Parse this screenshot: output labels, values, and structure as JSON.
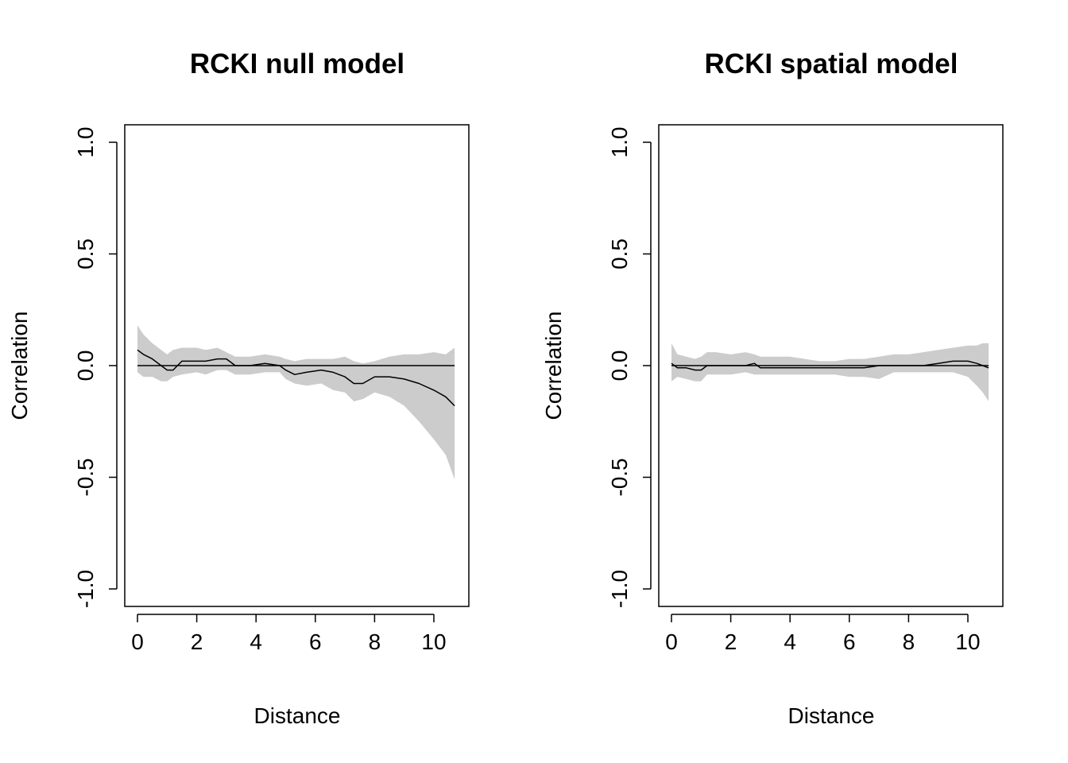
{
  "chart_data": [
    {
      "type": "line",
      "title": "RCKI null model",
      "xlabel": "Distance",
      "ylabel": "Correlation",
      "xlim": [
        0,
        10.7
      ],
      "ylim": [
        -1.0,
        1.0
      ],
      "x_ticks": [
        0,
        2,
        4,
        6,
        8,
        10
      ],
      "y_ticks": [
        -1.0,
        -0.5,
        0.0,
        0.5,
        1.0
      ],
      "x_tick_labels": [
        "0",
        "2",
        "4",
        "6",
        "8",
        "10"
      ],
      "y_tick_labels": [
        "-1.0",
        "-0.5",
        "0.0",
        "0.5",
        "1.0"
      ],
      "reference_line": 0,
      "band_color": "#cccccc",
      "line_color": "#000000",
      "series": [
        {
          "x": [
            0,
            0.2,
            0.5,
            0.8,
            1.0,
            1.2,
            1.5,
            2.0,
            2.3,
            2.7,
            3.0,
            3.3,
            3.8,
            4.3,
            4.8,
            5.0,
            5.3,
            5.7,
            6.2,
            6.6,
            7.0,
            7.3,
            7.6,
            8.0,
            8.5,
            9.0,
            9.5,
            10.0,
            10.4,
            10.7
          ],
          "y": [
            0.07,
            0.05,
            0.03,
            0.0,
            -0.02,
            -0.02,
            0.02,
            0.02,
            0.02,
            0.03,
            0.03,
            0.0,
            0.0,
            0.01,
            0.0,
            -0.02,
            -0.04,
            -0.03,
            -0.02,
            -0.03,
            -0.05,
            -0.08,
            -0.08,
            -0.05,
            -0.05,
            -0.06,
            -0.08,
            -0.11,
            -0.14,
            -0.18
          ],
          "lower": [
            -0.03,
            -0.05,
            -0.05,
            -0.07,
            -0.07,
            -0.05,
            -0.04,
            -0.03,
            -0.04,
            -0.02,
            -0.02,
            -0.04,
            -0.04,
            -0.03,
            -0.03,
            -0.06,
            -0.08,
            -0.09,
            -0.08,
            -0.11,
            -0.12,
            -0.16,
            -0.15,
            -0.12,
            -0.14,
            -0.18,
            -0.25,
            -0.33,
            -0.4,
            -0.51
          ],
          "upper": [
            0.18,
            0.14,
            0.1,
            0.07,
            0.05,
            0.07,
            0.08,
            0.08,
            0.07,
            0.08,
            0.06,
            0.04,
            0.04,
            0.05,
            0.04,
            0.03,
            0.02,
            0.03,
            0.03,
            0.03,
            0.04,
            0.02,
            0.01,
            0.02,
            0.04,
            0.05,
            0.05,
            0.06,
            0.05,
            0.08
          ]
        }
      ]
    },
    {
      "type": "line",
      "title": "RCKI spatial model",
      "xlabel": "Distance",
      "ylabel": "Correlation",
      "xlim": [
        0,
        10.7
      ],
      "ylim": [
        -1.0,
        1.0
      ],
      "x_ticks": [
        0,
        2,
        4,
        6,
        8,
        10
      ],
      "y_ticks": [
        -1.0,
        -0.5,
        0.0,
        0.5,
        1.0
      ],
      "x_tick_labels": [
        "0",
        "2",
        "4",
        "6",
        "8",
        "10"
      ],
      "y_tick_labels": [
        "-1.0",
        "-0.5",
        "0.0",
        "0.5",
        "1.0"
      ],
      "reference_line": 0,
      "band_color": "#cccccc",
      "line_color": "#000000",
      "series": [
        {
          "x": [
            0,
            0.2,
            0.5,
            0.8,
            1.0,
            1.2,
            1.5,
            2.0,
            2.5,
            2.8,
            3.0,
            3.5,
            4.0,
            4.5,
            5.0,
            5.5,
            6.0,
            6.5,
            7.0,
            7.5,
            8.0,
            8.5,
            9.0,
            9.5,
            10.0,
            10.3,
            10.5,
            10.7
          ],
          "y": [
            0.01,
            -0.01,
            -0.01,
            -0.02,
            -0.02,
            0.0,
            0.0,
            0.0,
            0.0,
            0.01,
            -0.01,
            -0.01,
            -0.01,
            -0.01,
            -0.01,
            -0.01,
            -0.01,
            -0.01,
            0.0,
            0.0,
            0.0,
            0.0,
            0.01,
            0.02,
            0.02,
            0.01,
            0.0,
            -0.01
          ],
          "lower": [
            -0.07,
            -0.05,
            -0.06,
            -0.07,
            -0.07,
            -0.04,
            -0.04,
            -0.04,
            -0.03,
            -0.04,
            -0.04,
            -0.04,
            -0.04,
            -0.04,
            -0.04,
            -0.04,
            -0.05,
            -0.05,
            -0.06,
            -0.03,
            -0.03,
            -0.03,
            -0.03,
            -0.03,
            -0.05,
            -0.09,
            -0.12,
            -0.16
          ],
          "upper": [
            0.1,
            0.05,
            0.04,
            0.03,
            0.04,
            0.06,
            0.06,
            0.05,
            0.06,
            0.05,
            0.04,
            0.04,
            0.04,
            0.03,
            0.02,
            0.02,
            0.03,
            0.03,
            0.04,
            0.05,
            0.05,
            0.06,
            0.07,
            0.08,
            0.09,
            0.09,
            0.1,
            0.1
          ]
        }
      ]
    }
  ]
}
